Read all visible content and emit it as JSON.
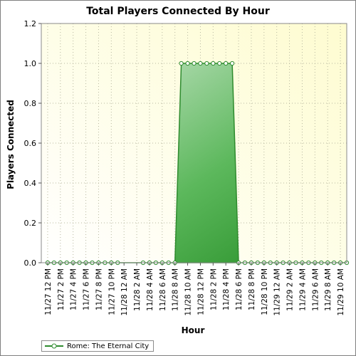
{
  "chart_data": {
    "type": "area",
    "title": "Total Players Connected By Hour",
    "xlabel": "Hour",
    "ylabel": "Players Connected",
    "ylim": [
      0,
      1.2
    ],
    "yticks": [
      "0.0",
      "0.2",
      "0.4",
      "0.6",
      "0.8",
      "1.0",
      "1.2"
    ],
    "categories": [
      "11/27 12 PM",
      "11/27 2 PM",
      "11/27 4 PM",
      "11/27 6 PM",
      "11/27 8 PM",
      "11/27 10 PM",
      "11/28 12 AM",
      "11/28 2 AM",
      "11/28 4 AM",
      "11/28 6 AM",
      "11/28 8 AM",
      "11/28 10 AM",
      "11/28 12 PM",
      "11/28 2 PM",
      "11/28 4 PM",
      "11/28 6 PM",
      "11/28 8 PM",
      "11/28 10 PM",
      "11/29 12 AM",
      "11/29 2 AM",
      "11/29 4 AM",
      "11/29 6 AM",
      "11/29 8 AM",
      "11/29 10 AM"
    ],
    "grid": true,
    "legend_position": "bottom-left",
    "series": [
      {
        "name": "Rome: The Eternal City",
        "color": "#2e8b2e",
        "points": [
          {
            "x": 0.0,
            "y": 0
          },
          {
            "x": 0.5,
            "y": 0
          },
          {
            "x": 1.0,
            "y": 0
          },
          {
            "x": 1.5,
            "y": 0
          },
          {
            "x": 2.0,
            "y": 0
          },
          {
            "x": 2.5,
            "y": 0
          },
          {
            "x": 3.0,
            "y": 0
          },
          {
            "x": 3.5,
            "y": 0
          },
          {
            "x": 4.0,
            "y": 0
          },
          {
            "x": 4.5,
            "y": 0
          },
          {
            "x": 5.0,
            "y": 0
          },
          {
            "x": 5.5,
            "y": 0
          },
          {
            "x": 7.5,
            "y": 0
          },
          {
            "x": 8.0,
            "y": 0
          },
          {
            "x": 8.5,
            "y": 0
          },
          {
            "x": 9.0,
            "y": 0
          },
          {
            "x": 9.5,
            "y": 0
          },
          {
            "x": 10.0,
            "y": 0
          },
          {
            "x": 10.5,
            "y": 1
          },
          {
            "x": 11.0,
            "y": 1
          },
          {
            "x": 11.5,
            "y": 1
          },
          {
            "x": 12.0,
            "y": 1
          },
          {
            "x": 12.5,
            "y": 1
          },
          {
            "x": 13.0,
            "y": 1
          },
          {
            "x": 13.5,
            "y": 1
          },
          {
            "x": 14.0,
            "y": 1
          },
          {
            "x": 14.5,
            "y": 1
          },
          {
            "x": 15.0,
            "y": 0
          },
          {
            "x": 15.5,
            "y": 0
          },
          {
            "x": 16.0,
            "y": 0
          },
          {
            "x": 16.5,
            "y": 0
          },
          {
            "x": 17.0,
            "y": 0
          },
          {
            "x": 17.5,
            "y": 0
          },
          {
            "x": 18.0,
            "y": 0
          },
          {
            "x": 18.5,
            "y": 0
          },
          {
            "x": 19.0,
            "y": 0
          },
          {
            "x": 19.5,
            "y": 0
          },
          {
            "x": 20.0,
            "y": 0
          },
          {
            "x": 20.5,
            "y": 0
          },
          {
            "x": 21.0,
            "y": 0
          },
          {
            "x": 21.5,
            "y": 0
          },
          {
            "x": 22.0,
            "y": 0
          },
          {
            "x": 22.5,
            "y": 0
          },
          {
            "x": 23.0,
            "y": 0
          },
          {
            "x": 23.5,
            "y": 0
          }
        ]
      }
    ]
  }
}
